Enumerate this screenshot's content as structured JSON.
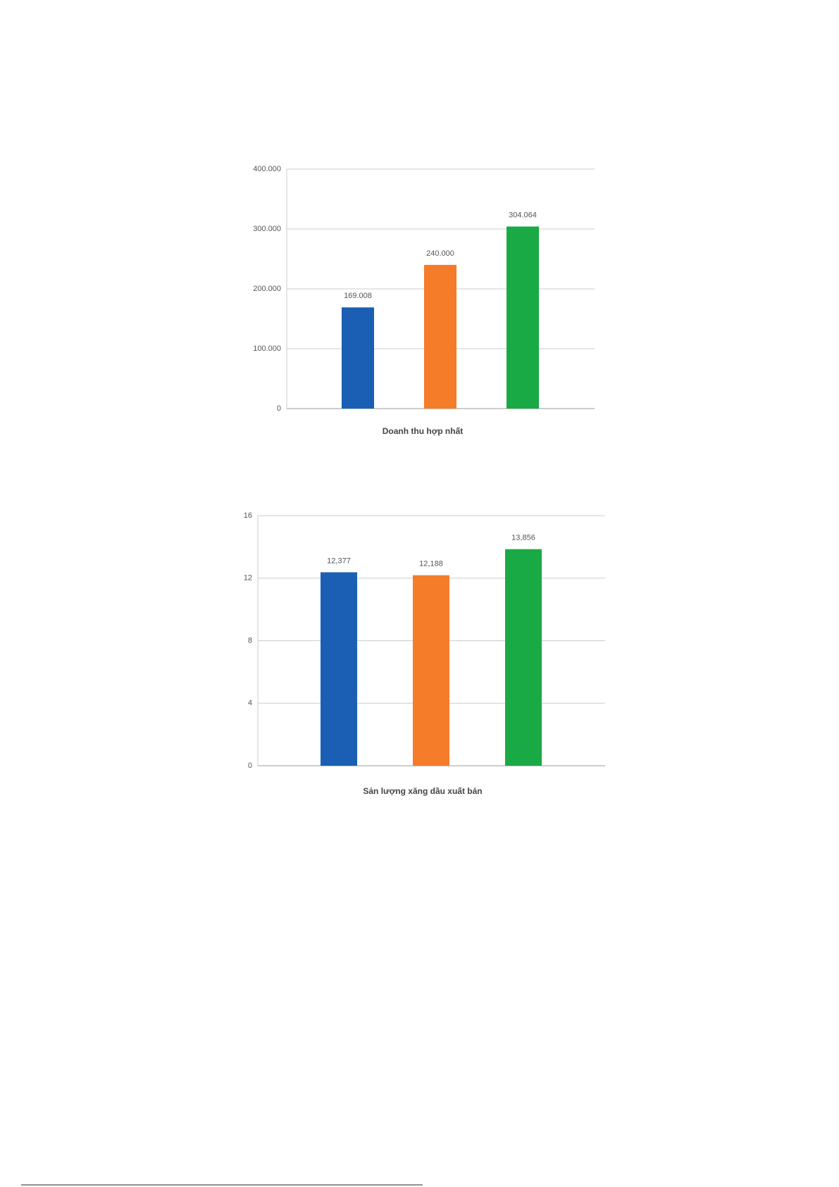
{
  "chart_data": [
    {
      "type": "bar",
      "xlabel": "Doanh thu hợp nhất",
      "values": [
        169008,
        240000,
        304064
      ],
      "value_labels": [
        "169.008",
        "240.000",
        "304.064"
      ],
      "colors": [
        "#1a5fb4",
        "#f57c28",
        "#1aaa45"
      ],
      "ylim": [
        0,
        400000
      ],
      "yticks": [
        0,
        {
          "value": 100000,
          "label": "100.000"
        },
        {
          "value": 200000,
          "label": "200.000"
        },
        {
          "value": 300000,
          "label": "300.000"
        },
        {
          "value": 400000,
          "label": "400.000"
        }
      ],
      "grid": true
    },
    {
      "type": "bar",
      "xlabel": "Sản lượng xăng dầu xuất bán",
      "values": [
        12.377,
        12.188,
        13.856
      ],
      "value_labels": [
        "12,377",
        "12,188",
        "13,856"
      ],
      "colors": [
        "#1a5fb4",
        "#f57c28",
        "#1aaa45"
      ],
      "ylim": [
        0,
        16
      ],
      "yticks": [
        0,
        4,
        8,
        12,
        16
      ],
      "grid": true
    }
  ]
}
